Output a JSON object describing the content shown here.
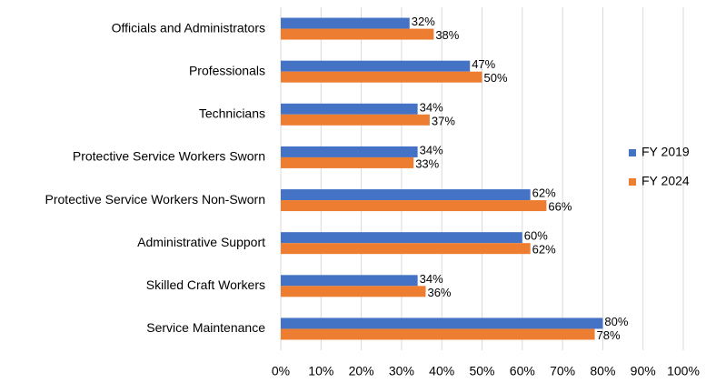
{
  "chart_data": {
    "type": "hbar",
    "categories": [
      "Officials and Administrators",
      "Professionals",
      "Technicians",
      "Protective Service Workers Sworn",
      "Protective Service Workers Non-Sworn",
      "Administrative Support",
      "Skilled Craft Workers",
      "Service Maintenance"
    ],
    "series": [
      {
        "name": "FY 2019",
        "color": "#4472c4",
        "values": [
          32,
          47,
          34,
          34,
          62,
          60,
          34,
          80
        ],
        "value_labels": [
          "32%",
          "47%",
          "34%",
          "34%",
          "62%",
          "60%",
          "34%",
          "80%"
        ]
      },
      {
        "name": "FY 2024",
        "color": "#ed7d31",
        "values": [
          38,
          50,
          37,
          33,
          66,
          62,
          36,
          78
        ],
        "value_labels": [
          "38%",
          "50%",
          "37%",
          "33%",
          "66%",
          "62%",
          "36%",
          "78%"
        ]
      }
    ],
    "xlim": [
      0,
      100
    ],
    "xticks": [
      {
        "value": 0,
        "label": "0%"
      },
      {
        "value": 10,
        "label": "10%"
      },
      {
        "value": 20,
        "label": "20%"
      },
      {
        "value": 30,
        "label": "30%"
      },
      {
        "value": 40,
        "label": "40%"
      },
      {
        "value": 50,
        "label": "50%"
      },
      {
        "value": 60,
        "label": "60%"
      },
      {
        "value": 70,
        "label": "70%"
      },
      {
        "value": 80,
        "label": "80%"
      },
      {
        "value": 90,
        "label": "90%"
      },
      {
        "value": 100,
        "label": "100%"
      }
    ],
    "grid": true,
    "legend": "right"
  }
}
